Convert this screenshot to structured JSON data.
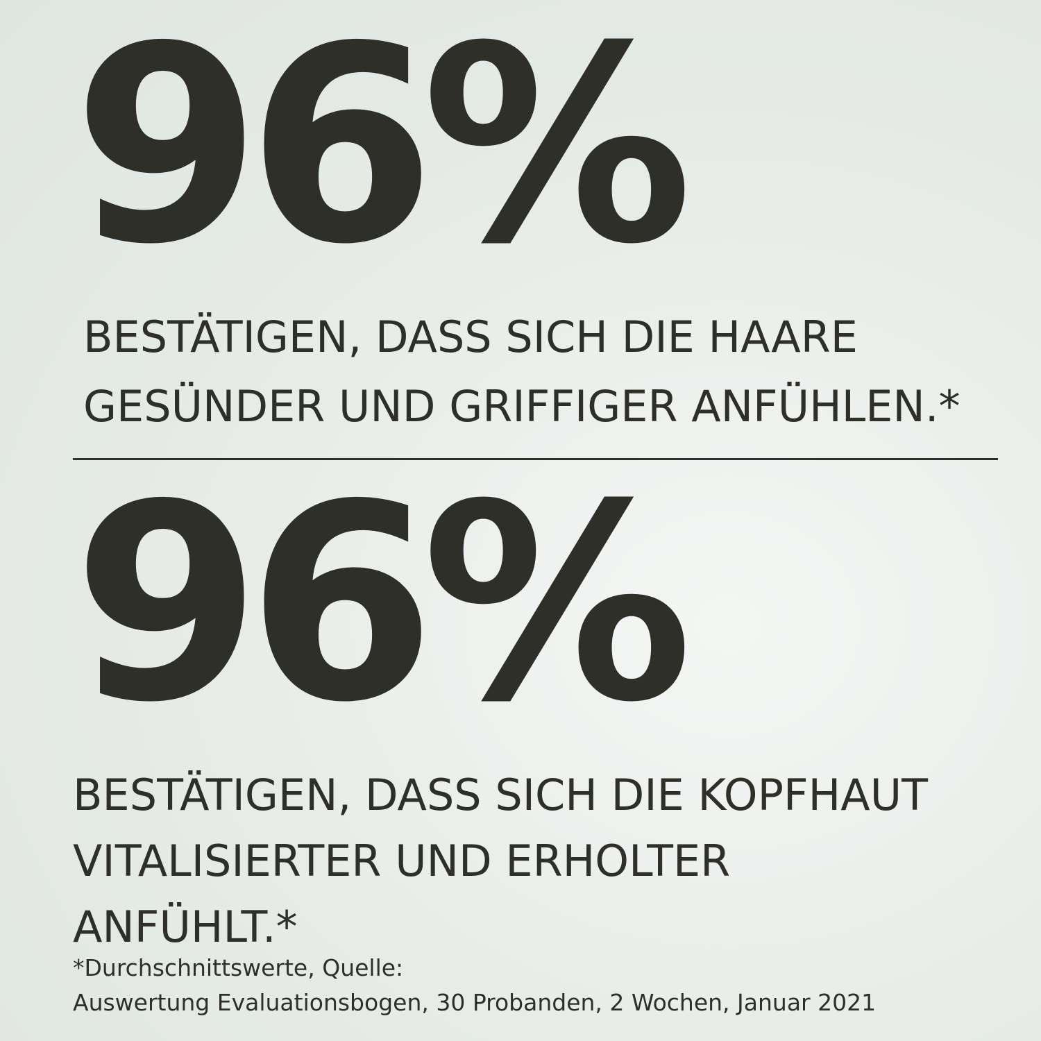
{
  "stats": [
    {
      "figure": "96%",
      "lines": [
        "BESTÄTIGEN, DASS SICH DIE HAARE",
        "GESÜNDER UND GRIFFIGER ANFÜHLEN.*"
      ]
    },
    {
      "figure": "96%",
      "lines": [
        "BESTÄTIGEN, DASS SICH DIE KOPFHAUT",
        "VITALISIERTER UND ERHOLTER",
        "ANFÜHLT.*"
      ]
    }
  ],
  "footnote": [
    "*Durchschnittswerte, Quelle:",
    "Auswertung Evaluationsbogen, 30 Probanden, 2 Wochen, Januar 2021"
  ]
}
